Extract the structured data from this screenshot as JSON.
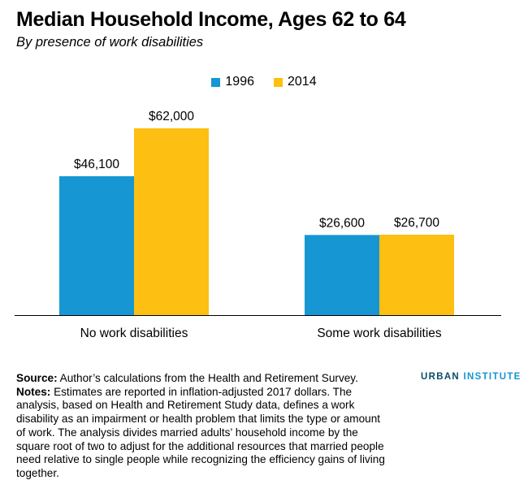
{
  "title": "Median Household Income, Ages 62 to 64",
  "subtitle": "By presence of work disabilities",
  "colors": {
    "s1996": "#1696d2",
    "s2014": "#fdbf11"
  },
  "chart_data": {
    "type": "bar",
    "title": "Median Household Income, Ages 62 to 64",
    "subtitle": "By presence of work disabilities",
    "categories": [
      "No work disabilities",
      "Some work disabilities"
    ],
    "series": [
      {
        "name": "1996",
        "values": [
          46100,
          26600
        ],
        "labels": [
          "$46,100",
          "$26,600"
        ]
      },
      {
        "name": "2014",
        "values": [
          62000,
          26700
        ],
        "labels": [
          "$62,000",
          "$26,700"
        ]
      }
    ],
    "ylim": [
      0,
      62000
    ],
    "grid": false,
    "legend": "top-center"
  },
  "legend": {
    "s1996": "1996",
    "s2014": "2014"
  },
  "notes": {
    "source_label": "Source:",
    "source_text": " Author’s calculations from the Health and Retirement Survey.",
    "notes_label": "Notes:",
    "notes_text": " Estimates are reported in inflation-adjusted 2017 dollars. The analysis, based on Health and Retirement Study data, defines a work disability as an impairment or health problem that limits the type or amount of work. The analysis divides married adults’ household income by the square root of two to adjust for the additional resources that married people need relative to single people while recognizing the efficiency gains of living together."
  },
  "brand": {
    "part1": "URBAN",
    "part2": "INSTITUTE"
  }
}
